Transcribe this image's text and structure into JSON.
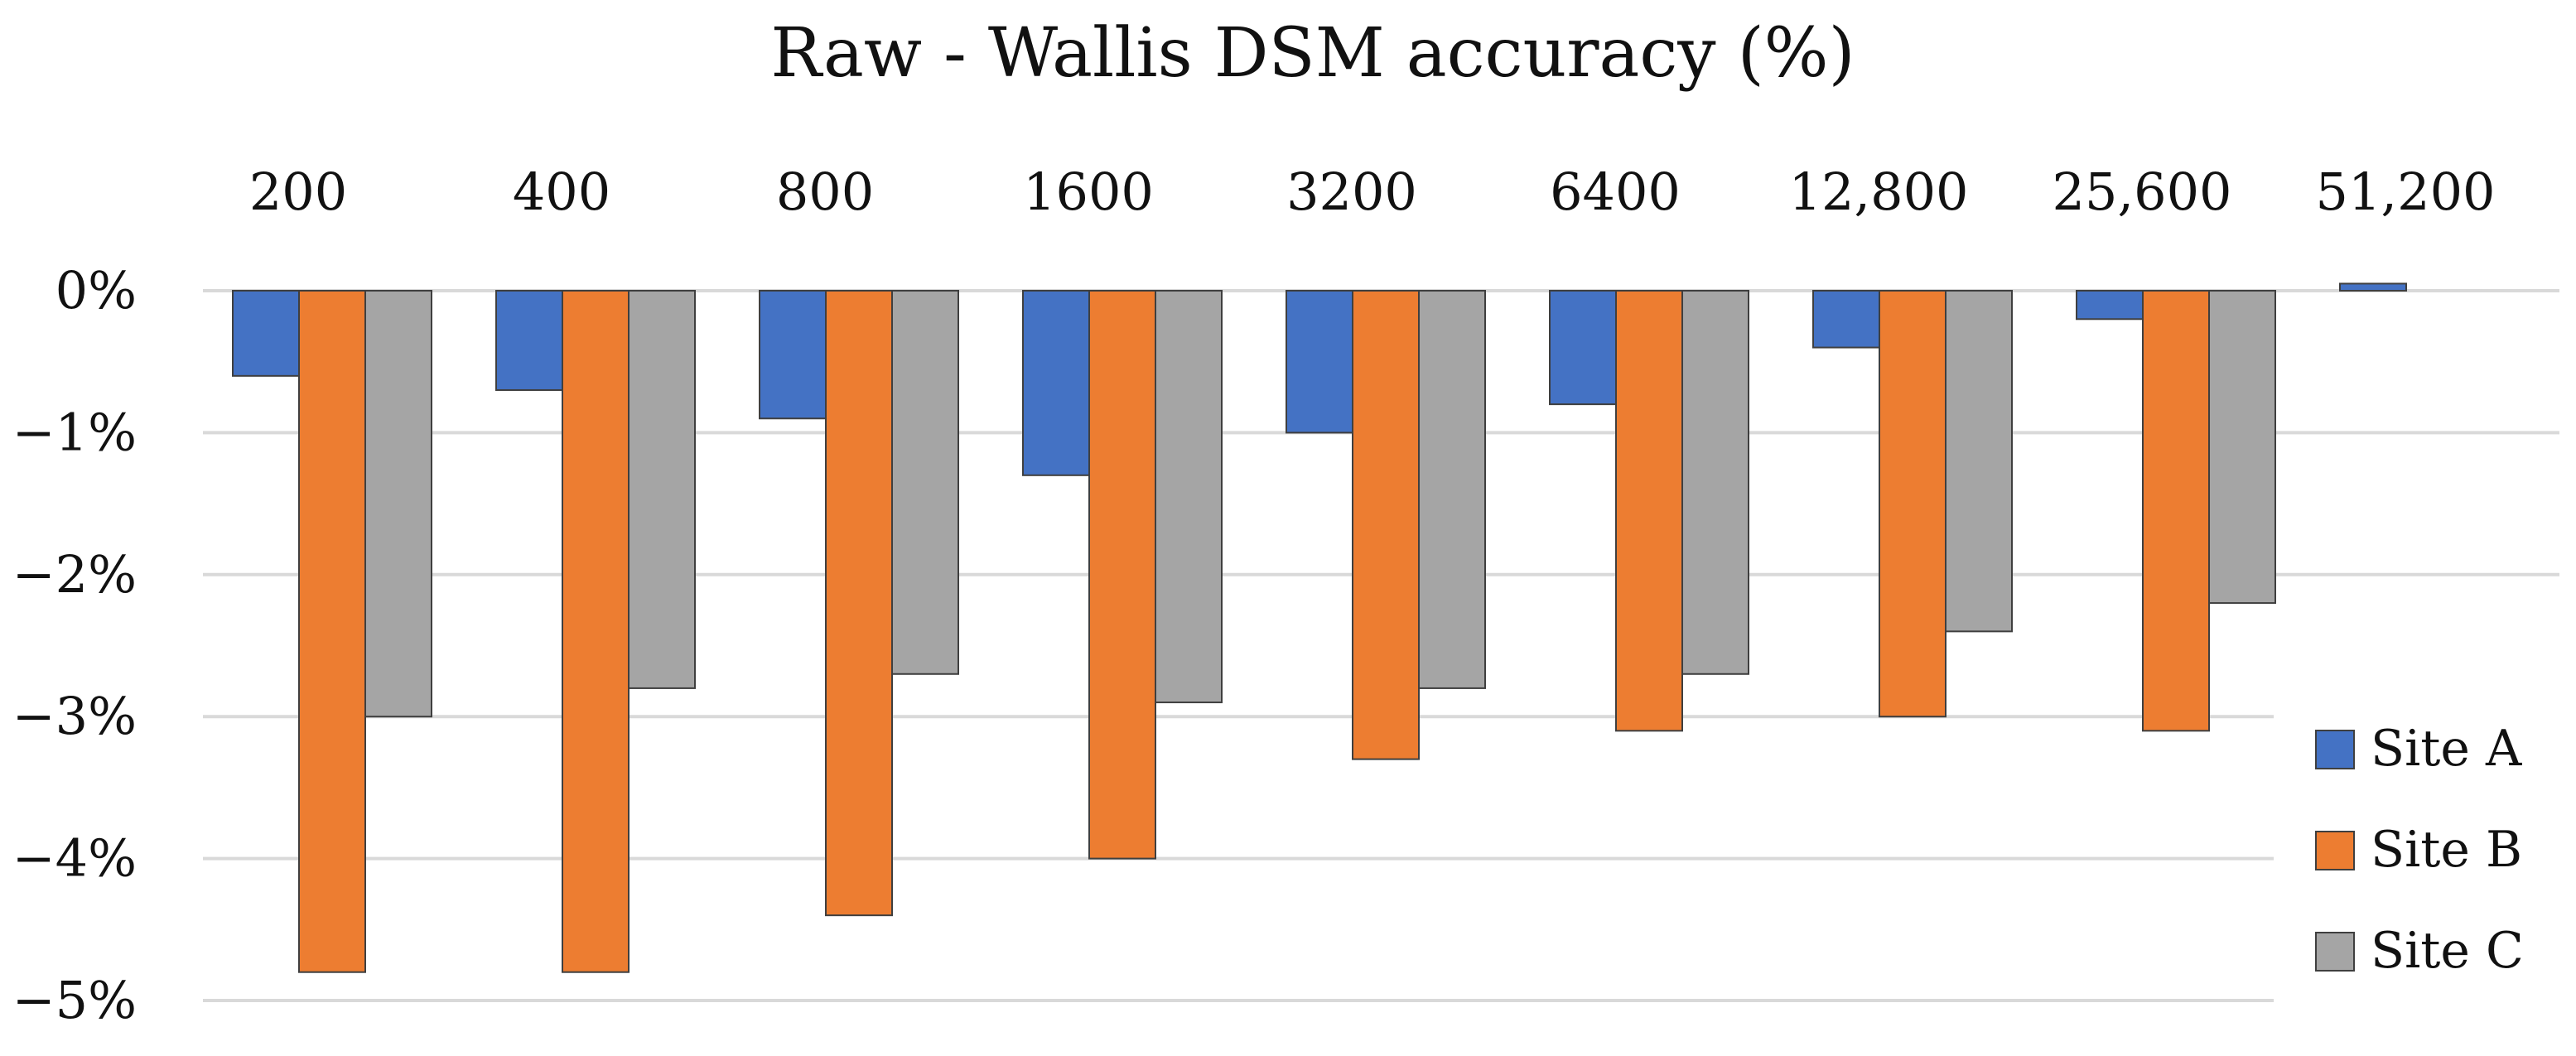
{
  "chart_data": {
    "type": "bar",
    "title": "Raw - Wallis DSM accuracy (%)",
    "xlabel": "",
    "ylabel": "",
    "categories": [
      "200",
      "400",
      "800",
      "1600",
      "3200",
      "6400",
      "12,800",
      "25,600",
      "51,200"
    ],
    "ylim": [
      -5,
      0
    ],
    "y_ticks": [
      0,
      -1,
      -2,
      -3,
      -4,
      -5
    ],
    "y_tick_labels": [
      "0%",
      "−1%",
      "−2%",
      "−3%",
      "−4%",
      "−5%"
    ],
    "category_axis_position": "top",
    "grid": true,
    "legend_position": "right",
    "series": [
      {
        "name": "Site A",
        "color": "#4472C4",
        "values": [
          -0.6,
          -0.7,
          -0.9,
          -1.3,
          -1.0,
          -0.8,
          -0.4,
          -0.2,
          0.05
        ]
      },
      {
        "name": "Site B",
        "color": "#ED7D31",
        "values": [
          -4.8,
          -4.8,
          -4.4,
          -4.0,
          -3.3,
          -3.1,
          -3.0,
          -3.1,
          null
        ]
      },
      {
        "name": "Site C",
        "color": "#A5A5A5",
        "values": [
          -3.0,
          -2.8,
          -2.7,
          -2.9,
          -2.8,
          -2.7,
          -2.4,
          -2.2,
          null
        ]
      }
    ]
  },
  "colors": {
    "grid": "#D9D9D9",
    "bar_outline": "#3F3F3F",
    "text": "#111111"
  }
}
